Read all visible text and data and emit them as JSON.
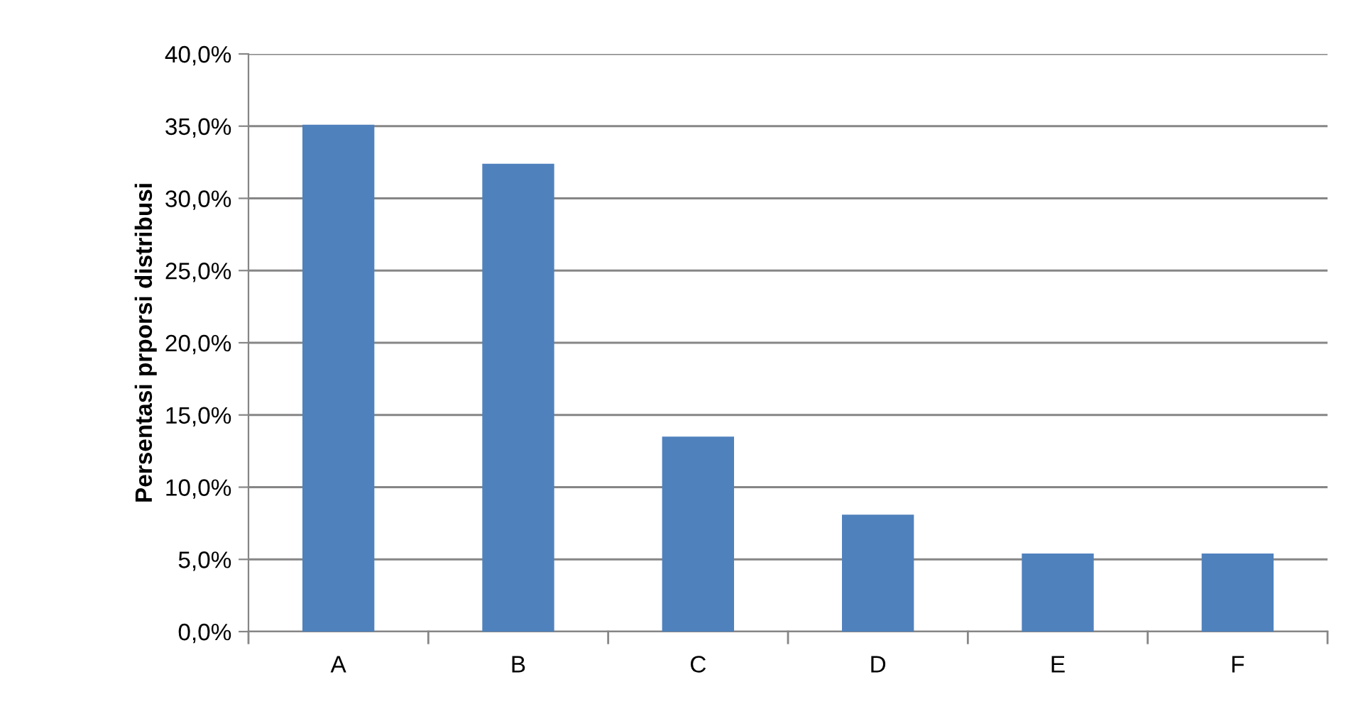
{
  "chart_data": {
    "type": "bar",
    "ylabel": "Persentasi prporsi distribusi",
    "categories": [
      "A",
      "B",
      "C",
      "D",
      "E",
      "F"
    ],
    "series": [
      {
        "color": "#4f81bd",
        "values": [
          35.1,
          32.4,
          13.5,
          8.1,
          5.4,
          5.4
        ]
      }
    ],
    "ylim": [
      0,
      40
    ],
    "yticks": [
      {
        "value": 0,
        "label": "0,0%"
      },
      {
        "value": 5,
        "label": "5,0%"
      },
      {
        "value": 10,
        "label": "10,0%"
      },
      {
        "value": 15,
        "label": "15,0%"
      },
      {
        "value": 20,
        "label": "20,0%"
      },
      {
        "value": 25,
        "label": "25,0%"
      },
      {
        "value": 30,
        "label": "30,0%"
      },
      {
        "value": 35,
        "label": "35,0%"
      },
      {
        "value": 40,
        "label": "40,0%"
      }
    ],
    "grid": "y",
    "legend": false
  }
}
